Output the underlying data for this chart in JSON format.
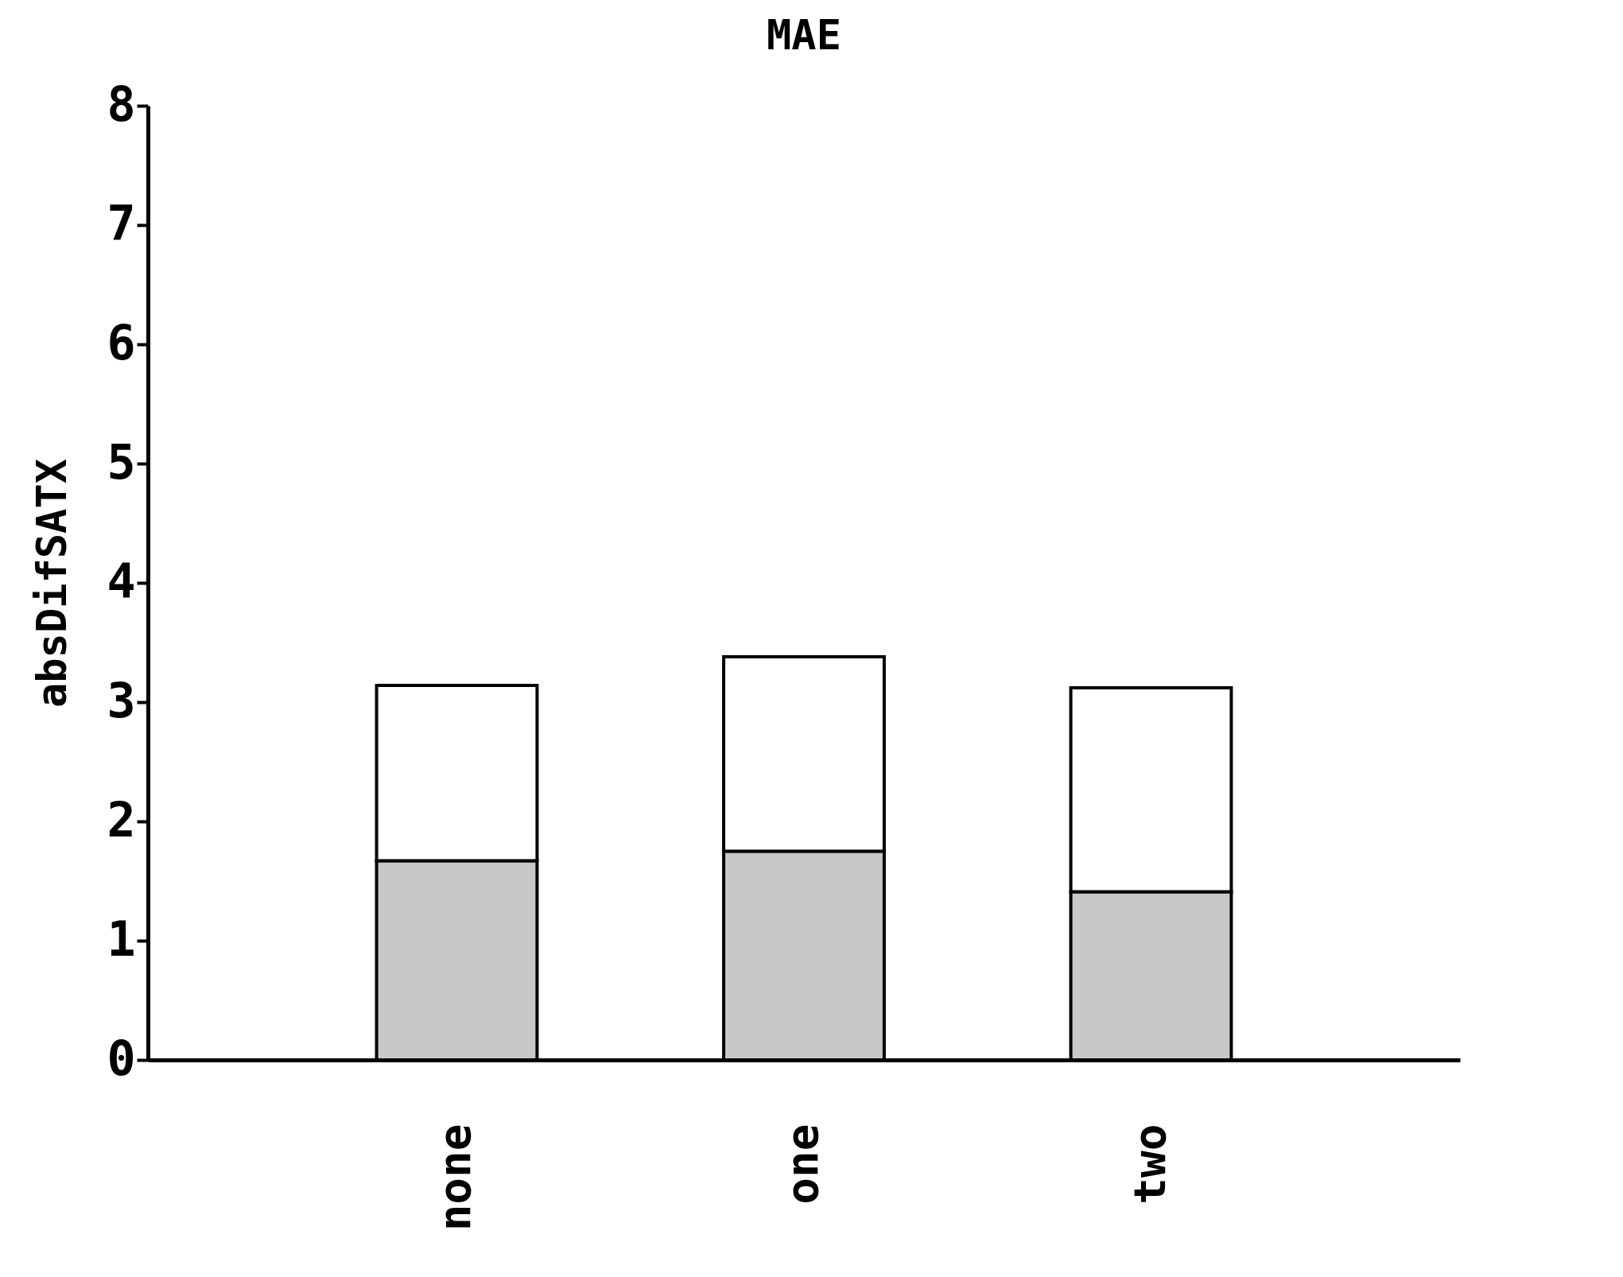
{
  "chart_data": {
    "type": "bar",
    "title": "MAE",
    "ylabel": "absDifSATX",
    "categories": [
      "none",
      "one",
      "two"
    ],
    "stacked": true,
    "series": [
      {
        "color": "#c8c8c8",
        "values": [
          1.67,
          1.75,
          1.41
        ]
      },
      {
        "color": "#ffffff",
        "values": [
          1.47,
          1.63,
          1.71
        ]
      }
    ],
    "ylim": [
      0,
      8
    ],
    "yticks": [
      0,
      1,
      2,
      3,
      4,
      5,
      6,
      7,
      8
    ],
    "grid": false,
    "legend": false
  }
}
